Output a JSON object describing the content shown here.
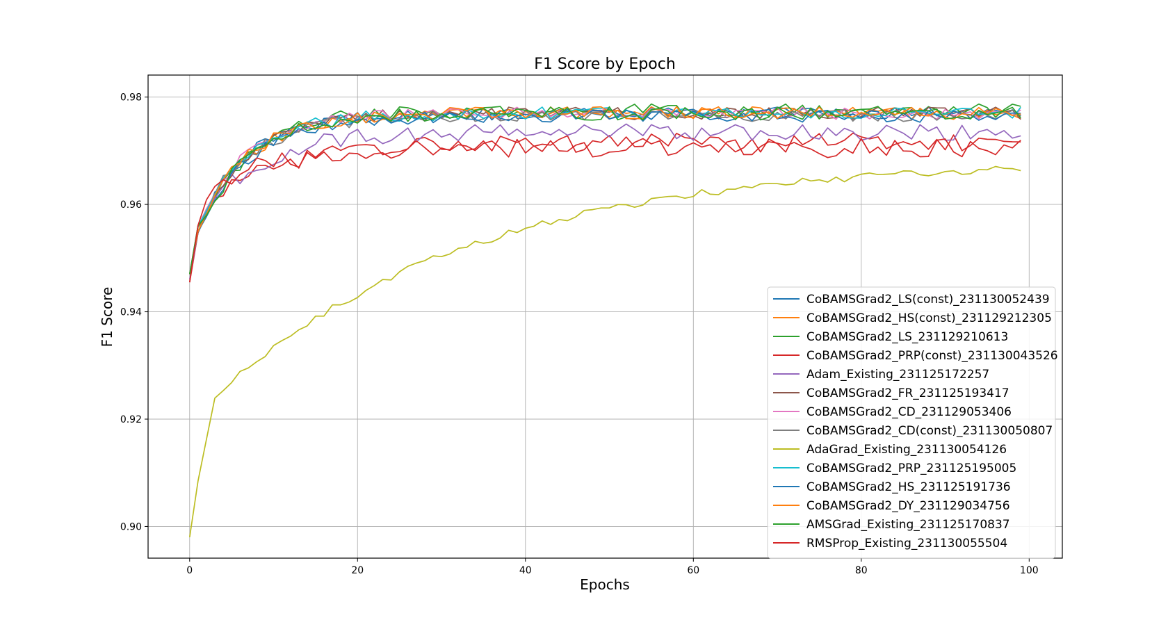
{
  "chart_data": {
    "type": "line",
    "title": "F1 Score by Epoch",
    "xlabel": "Epochs",
    "ylabel": "F1 Score",
    "xlim": [
      -4.95,
      103.95
    ],
    "ylim": [
      0.8941,
      0.9841
    ],
    "xticks": [
      0,
      20,
      40,
      60,
      80,
      100
    ],
    "yticks": [
      0.9,
      0.92,
      0.94,
      0.96,
      0.98
    ],
    "xtick_labels": [
      "0",
      "20",
      "40",
      "60",
      "80",
      "100"
    ],
    "ytick_labels": [
      "0.90",
      "0.92",
      "0.94",
      "0.96",
      "0.98"
    ],
    "grid": true,
    "legend_position": "lower-right",
    "series": [
      {
        "name": "CoBAMSGrad2_LS(const)_231130052439",
        "color": "#1f77b4",
        "start": 0.947,
        "p1": 0.955,
        "p3": 0.962,
        "k": 6,
        "end": 0.977,
        "amp": 0.0012,
        "seed": 1
      },
      {
        "name": "CoBAMSGrad2_HS(const)_231129212305",
        "color": "#ff7f0e",
        "start": 0.947,
        "p1": 0.956,
        "p3": 0.961,
        "k": 6,
        "end": 0.977,
        "amp": 0.0012,
        "seed": 2
      },
      {
        "name": "CoBAMSGrad2_LS_231129210613",
        "color": "#2ca02c",
        "start": 0.947,
        "p1": 0.956,
        "p3": 0.961,
        "k": 6,
        "end": 0.9775,
        "amp": 0.0013,
        "seed": 3
      },
      {
        "name": "CoBAMSGrad2_PRP(const)_231130043526",
        "color": "#d62728",
        "start": 0.9455,
        "p1": 0.955,
        "p3": 0.961,
        "k": 8,
        "end": 0.9715,
        "amp": 0.0018,
        "seed": 4
      },
      {
        "name": "Adam_Existing_231125172257",
        "color": "#9467bd",
        "start": 0.946,
        "p1": 0.955,
        "p3": 0.961,
        "k": 7,
        "end": 0.9735,
        "amp": 0.0016,
        "seed": 5
      },
      {
        "name": "CoBAMSGrad2_FR_231125193417",
        "color": "#8c564b",
        "start": 0.947,
        "p1": 0.955,
        "p3": 0.962,
        "k": 6,
        "end": 0.977,
        "amp": 0.0012,
        "seed": 6
      },
      {
        "name": "CoBAMSGrad2_CD_231129053406",
        "color": "#e377c2",
        "start": 0.947,
        "p1": 0.956,
        "p3": 0.962,
        "k": 6,
        "end": 0.977,
        "amp": 0.0012,
        "seed": 7
      },
      {
        "name": "CoBAMSGrad2_CD(const)_231130050807",
        "color": "#7f7f7f",
        "start": 0.947,
        "p1": 0.955,
        "p3": 0.962,
        "k": 6,
        "end": 0.9765,
        "amp": 0.0012,
        "seed": 8
      },
      {
        "name": "AdaGrad_Existing_231130054126",
        "color": "#bcbd22",
        "start": 0.898,
        "p1": 0.9085,
        "p3": 0.924,
        "k": 30,
        "end": 0.9685,
        "amp": 0.0007,
        "seed": 9
      },
      {
        "name": "CoBAMSGrad2_PRP_231125195005",
        "color": "#17becf",
        "start": 0.947,
        "p1": 0.956,
        "p3": 0.962,
        "k": 6,
        "end": 0.977,
        "amp": 0.0012,
        "seed": 10
      },
      {
        "name": "CoBAMSGrad2_HS_231125191736",
        "color": "#1f77b4",
        "start": 0.947,
        "p1": 0.955,
        "p3": 0.961,
        "k": 6,
        "end": 0.9765,
        "amp": 0.0012,
        "seed": 11
      },
      {
        "name": "CoBAMSGrad2_DY_231129034756",
        "color": "#ff7f0e",
        "start": 0.947,
        "p1": 0.955,
        "p3": 0.962,
        "k": 6,
        "end": 0.977,
        "amp": 0.0012,
        "seed": 12
      },
      {
        "name": "AMSGrad_Existing_231125170837",
        "color": "#2ca02c",
        "start": 0.947,
        "p1": 0.956,
        "p3": 0.961,
        "k": 6,
        "end": 0.977,
        "amp": 0.0013,
        "seed": 13
      },
      {
        "name": "RMSProp_Existing_231130055504",
        "color": "#d62728",
        "start": 0.9455,
        "p1": 0.956,
        "p3": 0.964,
        "k": 8,
        "end": 0.9705,
        "amp": 0.0018,
        "seed": 14
      }
    ]
  }
}
